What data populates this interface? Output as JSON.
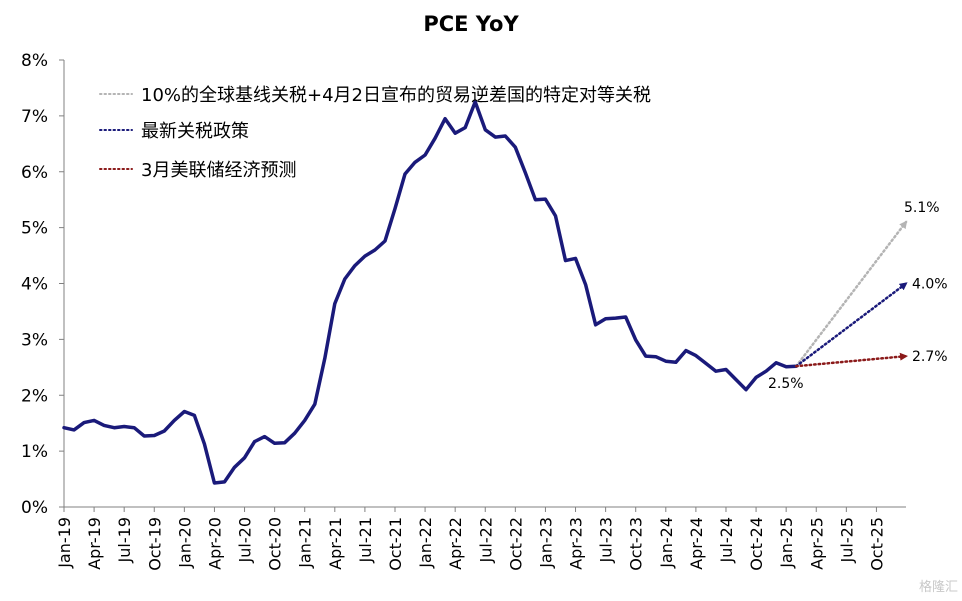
{
  "chart_data": {
    "type": "line",
    "title": "PCE YoY",
    "ylim": [
      0,
      8
    ],
    "y_ticks": [
      "0%",
      "1%",
      "2%",
      "3%",
      "4%",
      "5%",
      "6%",
      "7%",
      "8%"
    ],
    "x_ticks": [
      "Jan-19",
      "Apr-19",
      "Jul-19",
      "Oct-19",
      "Jan-20",
      "Apr-20",
      "Jul-20",
      "Oct-20",
      "Jan-21",
      "Apr-21",
      "Jul-21",
      "Oct-21",
      "Jan-22",
      "Apr-22",
      "Jul-22",
      "Oct-22",
      "Jan-23",
      "Apr-23",
      "Jul-23",
      "Oct-23",
      "Jan-24",
      "Apr-24",
      "Jul-24",
      "Oct-24",
      "Jan-25",
      "Apr-25",
      "Jul-25",
      "Oct-25"
    ],
    "grid": false,
    "series": [
      {
        "color": "#1a1a7a",
        "values": [
          1.42,
          1.38,
          1.51,
          1.55,
          1.46,
          1.42,
          1.44,
          1.42,
          1.27,
          1.28,
          1.36,
          1.55,
          1.71,
          1.64,
          1.13,
          0.43,
          0.45,
          0.71,
          0.88,
          1.17,
          1.26,
          1.14,
          1.15,
          1.32,
          1.55,
          1.84,
          2.66,
          3.64,
          4.08,
          4.32,
          4.49,
          4.6,
          4.76,
          5.34,
          5.96,
          6.17,
          6.3,
          6.6,
          6.95,
          6.69,
          6.79,
          7.25,
          6.75,
          6.62,
          6.64,
          6.44,
          5.98,
          5.5,
          5.51,
          5.21,
          4.41,
          4.45,
          3.98,
          3.26,
          3.37,
          3.38,
          3.4,
          2.99,
          2.7,
          2.69,
          2.61,
          2.59,
          2.8,
          2.71,
          2.57,
          2.43,
          2.46,
          2.28,
          2.1,
          2.32,
          2.43,
          2.58,
          2.51,
          2.52
        ]
      }
    ],
    "projections": [
      {
        "name": "10%的全球基线关税+4月2日宣布的贸易逆差国的特定对等关税",
        "color": "#b4b4b4",
        "end_value": 5.1,
        "end_label": "5.1%"
      },
      {
        "name": "最新关税政策",
        "color": "#1a1a7a",
        "end_value": 4.0,
        "end_label": "4.0%"
      },
      {
        "name": "3月美联储经济预测",
        "color": "#8b1a1a",
        "end_value": 2.7,
        "end_label": "2.7%"
      }
    ],
    "last_value_label": "2.5%"
  },
  "watermark": "格隆汇"
}
